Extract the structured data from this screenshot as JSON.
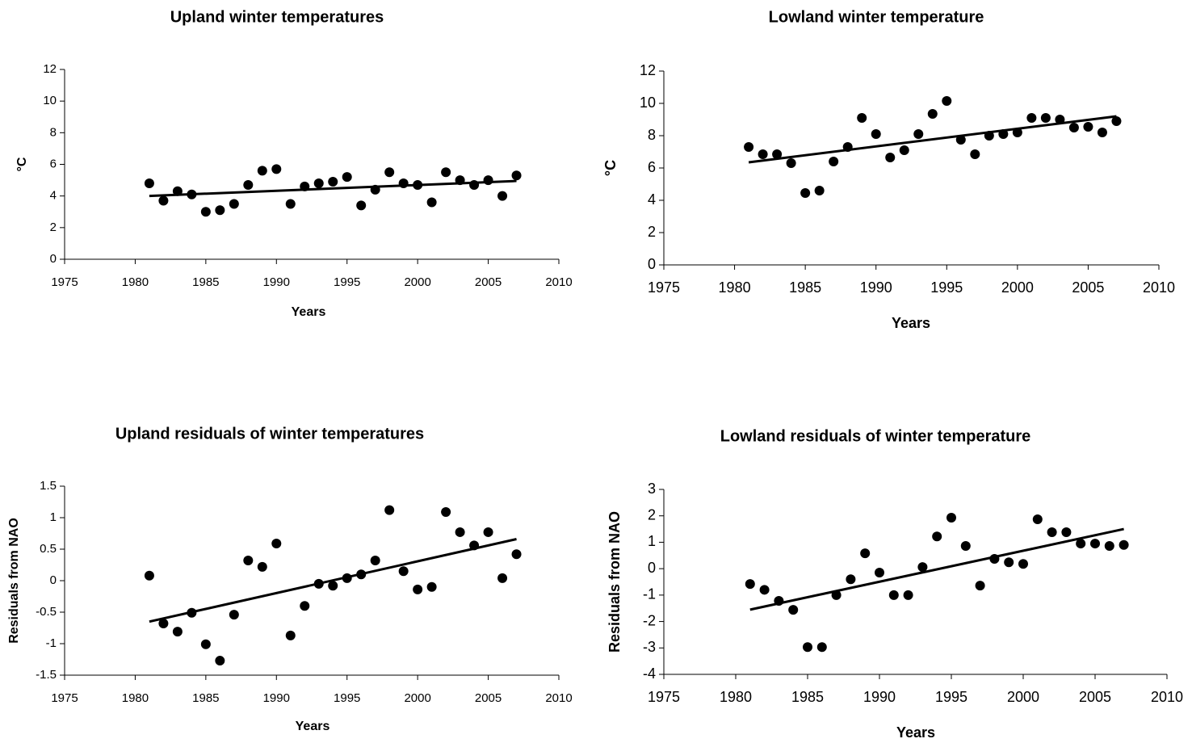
{
  "chart_data": [
    {
      "type": "scatter",
      "title": "Upland winter temperatures",
      "xlabel": "Years",
      "ylabel": "°C",
      "x": [
        1981,
        1982,
        1983,
        1984,
        1985,
        1986,
        1987,
        1988,
        1989,
        1990,
        1991,
        1992,
        1993,
        1994,
        1995,
        1996,
        1997,
        1998,
        1999,
        2000,
        2001,
        2002,
        2003,
        2004,
        2005,
        2006,
        2007
      ],
      "values": [
        4.8,
        3.7,
        4.3,
        4.1,
        3.0,
        3.1,
        3.5,
        4.7,
        5.6,
        5.7,
        3.5,
        4.6,
        4.8,
        4.9,
        5.2,
        3.4,
        4.4,
        5.5,
        4.8,
        4.7,
        3.6,
        5.5,
        5.0,
        4.7,
        5.0,
        4.0,
        5.3
      ],
      "trendline": {
        "x": [
          1981,
          2007
        ],
        "values": [
          4.0,
          4.95
        ]
      },
      "color": "#000000",
      "xlim": [
        1975,
        2010
      ],
      "xticks": [
        1975,
        1980,
        1985,
        1990,
        1995,
        2000,
        2005,
        2010
      ],
      "ylim": [
        0,
        12
      ],
      "yticks": [
        0,
        2,
        4,
        6,
        8,
        10,
        12
      ]
    },
    {
      "type": "scatter",
      "title": "Lowland winter temperature",
      "xlabel": "Years",
      "ylabel": "°C",
      "x": [
        1981,
        1982,
        1983,
        1984,
        1985,
        1986,
        1987,
        1988,
        1989,
        1990,
        1991,
        1992,
        1993,
        1994,
        1995,
        1996,
        1997,
        1998,
        1999,
        2000,
        2001,
        2002,
        2003,
        2004,
        2005,
        2006,
        2007
      ],
      "values": [
        7.3,
        6.85,
        6.85,
        6.3,
        4.45,
        4.6,
        6.4,
        7.3,
        9.1,
        8.1,
        6.65,
        7.1,
        8.1,
        9.35,
        10.15,
        7.75,
        6.85,
        8.0,
        8.1,
        8.2,
        9.1,
        9.1,
        9.0,
        8.5,
        8.55,
        8.2,
        8.9
      ],
      "trendline": {
        "x": [
          1981,
          2007
        ],
        "values": [
          6.35,
          9.2
        ]
      },
      "color": "#000000",
      "xlim": [
        1975,
        2010
      ],
      "xticks": [
        1975,
        1980,
        1985,
        1990,
        1995,
        2000,
        2005,
        2010
      ],
      "ylim": [
        0,
        12
      ],
      "yticks": [
        0,
        2,
        4,
        6,
        8,
        10,
        12
      ]
    },
    {
      "type": "scatter",
      "title": "Upland residuals of winter temperatures",
      "xlabel": "Years",
      "ylabel": "Residuals from NAO",
      "x": [
        1981,
        1982,
        1983,
        1984,
        1985,
        1986,
        1987,
        1988,
        1989,
        1990,
        1991,
        1992,
        1993,
        1994,
        1995,
        1996,
        1997,
        1998,
        1999,
        2000,
        2001,
        2002,
        2003,
        2004,
        2005,
        2006,
        2007
      ],
      "values": [
        0.08,
        -0.68,
        -0.81,
        -0.51,
        -1.01,
        -1.27,
        -0.54,
        0.32,
        0.22,
        0.59,
        -0.87,
        -0.4,
        -0.05,
        -0.08,
        0.04,
        0.1,
        0.32,
        1.12,
        0.15,
        -0.14,
        -0.1,
        1.09,
        0.77,
        0.56,
        0.77,
        0.04,
        0.42
      ],
      "trendline": {
        "x": [
          1981,
          2007
        ],
        "values": [
          -0.65,
          0.66
        ]
      },
      "color": "#000000",
      "xlim": [
        1975,
        2010
      ],
      "xticks": [
        1975,
        1980,
        1985,
        1990,
        1995,
        2000,
        2005,
        2010
      ],
      "ylim": [
        -1.5,
        1.5
      ],
      "yticks": [
        -1.5,
        -1,
        -0.5,
        0,
        0.5,
        1,
        1.5
      ]
    },
    {
      "type": "scatter",
      "title": "Lowland residuals of winter temperature",
      "xlabel": "Years",
      "ylabel": "Residuals from NAO",
      "x": [
        1981,
        1982,
        1983,
        1984,
        1985,
        1986,
        1987,
        1988,
        1989,
        1990,
        1991,
        1992,
        1993,
        1994,
        1995,
        1996,
        1997,
        1998,
        1999,
        2000,
        2001,
        2002,
        2003,
        2004,
        2005,
        2006,
        2007
      ],
      "values": [
        -0.58,
        -0.8,
        -1.22,
        -1.56,
        -2.97,
        -2.97,
        -1.0,
        -0.4,
        0.58,
        -0.15,
        -1.0,
        -1.0,
        0.06,
        1.22,
        1.93,
        0.86,
        -0.64,
        0.37,
        0.24,
        0.18,
        1.87,
        1.38,
        1.38,
        0.95,
        0.95,
        0.86,
        0.9
      ],
      "trendline": {
        "x": [
          1981,
          2007
        ],
        "values": [
          -1.55,
          1.5
        ]
      },
      "color": "#000000",
      "xlim": [
        1975,
        2010
      ],
      "xticks": [
        1975,
        1980,
        1985,
        1990,
        1995,
        2000,
        2005,
        2010
      ],
      "ylim": [
        -4,
        3
      ],
      "yticks": [
        -4,
        -3,
        -2,
        -1,
        0,
        1,
        2,
        3
      ]
    }
  ]
}
